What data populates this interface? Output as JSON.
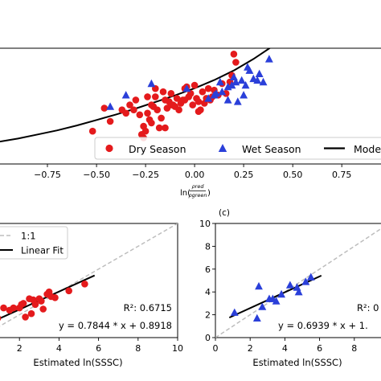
{
  "chart_data": [
    {
      "type": "scatter",
      "xlabel": "ln(ρred/ρgreen)",
      "xlabel_main": "ln(",
      "xlabel_num": "ρred",
      "xlabel_den": "ρgreen",
      "xlabel_close": ")",
      "xlim": [
        -1.0,
        0.95
      ],
      "ylim": [
        0,
        10
      ],
      "xticks": [
        -0.75,
        -0.5,
        -0.25,
        0.0,
        0.25,
        0.5,
        0.75
      ],
      "xtick_labels": [
        "−0.75",
        "−0.50",
        "−0.25",
        "0.00",
        "0.25",
        "0.50",
        "0.75"
      ],
      "legend": {
        "placement": "bottom-right",
        "entries": [
          "Dry Season",
          "Wet Season",
          "Mode"
        ]
      },
      "series": [
        {
          "name": "Dry Season",
          "marker": "circle",
          "color": "#e41a1c",
          "x": [
            -0.52,
            -0.46,
            -0.43,
            -0.37,
            -0.35,
            -0.33,
            -0.31,
            -0.3,
            -0.28,
            -0.27,
            -0.26,
            -0.25,
            -0.24,
            -0.23,
            -0.22,
            -0.21,
            -0.2,
            -0.19,
            -0.18,
            -0.17,
            -0.16,
            -0.15,
            -0.14,
            -0.13,
            -0.12,
            -0.11,
            -0.1,
            -0.09,
            -0.08,
            -0.07,
            -0.06,
            -0.05,
            -0.04,
            -0.03,
            -0.02,
            -0.01,
            0.0,
            0.01,
            0.02,
            0.03,
            0.04,
            0.05,
            0.06,
            0.07,
            0.08,
            0.1,
            0.12,
            0.14,
            0.16,
            0.18,
            0.2,
            -0.26,
            -0.24,
            -0.22,
            -0.2,
            -0.15,
            -0.12,
            -0.05,
            0.02,
            0.09,
            0.19,
            0.21
          ],
          "y": [
            2.0,
            3.4,
            2.6,
            3.3,
            3.1,
            3.6,
            3.3,
            3.9,
            3.0,
            1.8,
            2.3,
            2.0,
            3.1,
            2.7,
            2.5,
            3.5,
            4.1,
            3.3,
            2.2,
            2.8,
            4.4,
            3.9,
            3.4,
            3.8,
            4.3,
            3.6,
            3.5,
            4.0,
            3.3,
            3.7,
            3.9,
            3.9,
            4.7,
            4.1,
            4.3,
            3.6,
            4.8,
            4.0,
            3.8,
            3.3,
            4.4,
            3.7,
            4.0,
            4.6,
            3.9,
            4.5,
            4.2,
            4.9,
            4.3,
            5.0,
            6.7,
            1.6,
            4.1,
            3.6,
            4.6,
            2.2,
            3.6,
            4.6,
            3.2,
            4.1,
            5.4,
            6.2
          ]
        },
        {
          "name": "Wet Season",
          "marker": "triangle",
          "color": "#2a3fd9",
          "x": [
            -0.43,
            -0.35,
            -0.22,
            -0.04,
            0.07,
            0.1,
            0.13,
            0.14,
            0.17,
            0.19,
            0.2,
            0.21,
            0.22,
            0.24,
            0.25,
            0.26,
            0.28,
            0.3,
            0.32,
            0.33,
            0.35,
            0.38,
            0.17,
            0.11,
            0.27
          ],
          "y": [
            3.5,
            4.2,
            4.9,
            4.6,
            4.0,
            4.2,
            5.0,
            4.4,
            3.9,
            4.8,
            5.3,
            5.0,
            3.8,
            5.1,
            4.2,
            4.8,
            5.7,
            5.2,
            5.1,
            5.5,
            5.0,
            6.4,
            4.7,
            4.3,
            5.9
          ]
        },
        {
          "name": "Mode",
          "type": "line",
          "color": "#000000",
          "x": [
            -1.0,
            -0.9,
            -0.8,
            -0.7,
            -0.6,
            -0.5,
            -0.4,
            -0.3,
            -0.2,
            -0.1,
            0.0,
            0.1,
            0.2,
            0.3,
            0.4,
            0.5,
            0.55
          ],
          "y": [
            1.35,
            1.55,
            1.8,
            2.05,
            2.35,
            2.68,
            3.02,
            3.38,
            3.78,
            4.18,
            4.62,
            5.12,
            5.7,
            6.4,
            7.2,
            8.15,
            8.75
          ]
        }
      ]
    },
    {
      "type": "scatter",
      "xlabel": "Estimated ln(SSSC)",
      "xlim": [
        0,
        10
      ],
      "ylim": [
        0,
        10
      ],
      "xticks": [
        2,
        4,
        6,
        8,
        10
      ],
      "xtick_labels": [
        "2",
        "4",
        "6",
        "8",
        "10"
      ],
      "legend": {
        "placement": "top-left",
        "entries": [
          "1:1",
          "Linear Fit"
        ]
      },
      "annotations": {
        "r2": "R²: 0.6715",
        "equation": "y = 0.7844 * x + 0.8918"
      },
      "series": [
        {
          "name": "Dry Season",
          "marker": "circle",
          "color": "#e41a1c",
          "x": [
            0.9,
            1.2,
            1.5,
            1.7,
            2.0,
            2.1,
            2.2,
            2.3,
            2.5,
            2.6,
            2.7,
            2.8,
            3.0,
            3.1,
            3.2,
            3.4,
            3.5,
            3.6,
            3.8,
            4.5,
            5.3
          ],
          "y": [
            1.7,
            2.6,
            2.4,
            2.6,
            2.6,
            2.9,
            3.0,
            1.8,
            3.4,
            2.1,
            3.3,
            2.9,
            3.4,
            3.2,
            2.5,
            3.8,
            4.0,
            3.6,
            3.5,
            4.1,
            4.7
          ]
        },
        {
          "name": "1:1",
          "type": "line",
          "style": "dashed",
          "color": "#bdbdbd",
          "x": [
            0,
            10
          ],
          "y": [
            0,
            10
          ]
        },
        {
          "name": "Linear Fit",
          "type": "line",
          "color": "#000000",
          "x": [
            0.3,
            5.8
          ],
          "y": [
            1.127,
            5.441
          ]
        }
      ]
    },
    {
      "type": "scatter",
      "panel_label": "(c)",
      "xlabel": "Estimated ln(SSSC)",
      "xlim": [
        0,
        10
      ],
      "ylim": [
        0,
        10
      ],
      "xticks": [
        0,
        2,
        4,
        6,
        8
      ],
      "xtick_labels": [
        "0",
        "2",
        "4",
        "6",
        "8"
      ],
      "yticks": [
        0,
        2,
        4,
        6,
        8,
        10
      ],
      "ytick_labels": [
        "0",
        "2",
        "4",
        "6",
        "8",
        "10"
      ],
      "annotations": {
        "r2": "R²: 0",
        "equation": "y = 0.6939 * x + 1."
      },
      "series": [
        {
          "name": "Wet Season",
          "marker": "triangle",
          "color": "#2a3fd9",
          "x": [
            1.1,
            2.4,
            2.5,
            2.7,
            3.1,
            3.3,
            3.5,
            3.8,
            4.3,
            4.7,
            4.8,
            5.2,
            5.5
          ],
          "y": [
            2.2,
            1.7,
            4.5,
            2.7,
            3.4,
            3.4,
            3.2,
            3.8,
            4.6,
            4.4,
            4.0,
            4.9,
            5.3
          ]
        },
        {
          "name": "1:1",
          "type": "line",
          "style": "dashed",
          "color": "#bdbdbd",
          "x": [
            0,
            10
          ],
          "y": [
            0,
            10
          ]
        },
        {
          "name": "Linear Fit",
          "type": "line",
          "color": "#000000",
          "x": [
            0.8,
            6.1
          ],
          "y": [
            1.755,
            5.433
          ]
        }
      ]
    }
  ]
}
